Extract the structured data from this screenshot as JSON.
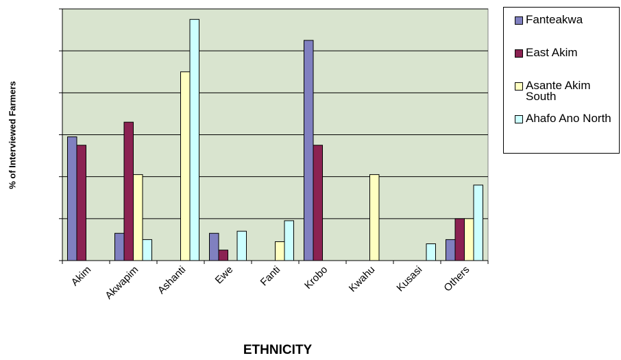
{
  "chart_data": {
    "type": "bar",
    "xlabel": "ETHNICITY",
    "ylabel": "% of Interviewed Farmers",
    "ylim": [
      0,
      60
    ],
    "yticks": [
      0,
      10,
      20,
      30,
      40,
      50,
      60
    ],
    "ytick_labels_visible": false,
    "grid": true,
    "legend_position": "right",
    "plot_background": "#d9e4cf",
    "categories": [
      "Akim",
      "Akwapim",
      "Ashanti",
      "Ewe",
      "Fanti",
      "Krobo",
      "Kwahu",
      "Kusasi",
      "Others"
    ],
    "series": [
      {
        "name": "Fanteakwa",
        "color": "#8080c0",
        "values": [
          29.5,
          6.5,
          0,
          6.5,
          0,
          52.5,
          0,
          0,
          5
        ]
      },
      {
        "name": "East Akim",
        "color": "#8b2252",
        "values": [
          27.5,
          33,
          0,
          2.5,
          0,
          27.5,
          0,
          0,
          10
        ]
      },
      {
        "name": "Asante Akim South",
        "color": "#ffffc0",
        "values": [
          0,
          20.5,
          45,
          0,
          4.5,
          0,
          20.5,
          0,
          10
        ]
      },
      {
        "name": "Ahafo Ano North",
        "color": "#ccffff",
        "values": [
          0,
          5,
          57.5,
          7,
          9.5,
          0,
          0,
          4,
          18
        ]
      }
    ]
  }
}
